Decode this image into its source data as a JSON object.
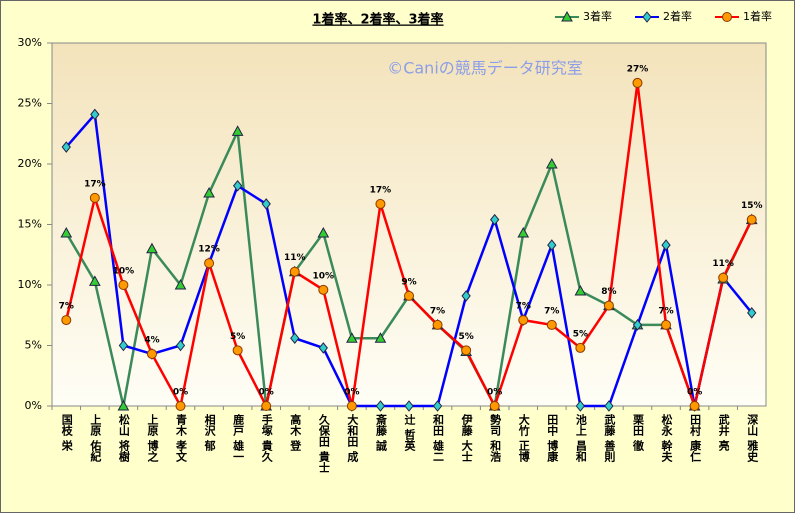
{
  "chart_data": {
    "type": "line",
    "title": "1着率、2着率、3着率",
    "watermark": "©Caniの競馬データ研究室",
    "categories": [
      "国枝 栄",
      "上原 佑紀",
      "松山 将樹",
      "上原 博之",
      "青木 孝文",
      "相沢 郁",
      "鹿戸 雄一",
      "手塚 貴久",
      "高木 登",
      "久保田 貴士",
      "大和田 成",
      "斎藤 誠",
      "辻 哲英",
      "和田 雄二",
      "伊藤 大士",
      "勢司 和浩",
      "大竹 正博",
      "田中 博康",
      "池上 昌和",
      "武藤 善則",
      "栗田 徹",
      "松永 幹夫",
      "田村 康仁",
      "武井 亮",
      "深山 雅史"
    ],
    "series": [
      {
        "name": "3着率",
        "color": "#3a8a5a",
        "marker": "triangle",
        "marker_color": "#33cc33",
        "values": [
          14.3,
          10.3,
          0,
          13.0,
          10.0,
          17.6,
          22.7,
          0,
          11.1,
          14.3,
          5.6,
          5.6,
          9.1,
          6.7,
          4.5,
          0,
          14.3,
          20.0,
          9.5,
          8.3,
          6.7,
          6.7,
          0,
          10.5,
          15.4
        ]
      },
      {
        "name": "2着率",
        "color": "#0000ff",
        "marker": "diamond",
        "marker_color": "#33cccc",
        "values": [
          21.4,
          24.1,
          5.0,
          4.3,
          5.0,
          11.8,
          18.2,
          16.7,
          5.6,
          4.8,
          0,
          0,
          0,
          0,
          9.1,
          15.4,
          7.1,
          13.3,
          0,
          0,
          6.7,
          13.3,
          0,
          10.6,
          7.7
        ]
      },
      {
        "name": "1着率",
        "color": "#ff0000",
        "marker": "circle",
        "marker_color": "#ff9900",
        "values": [
          7.1,
          17.2,
          10.0,
          4.3,
          0,
          11.8,
          4.6,
          0,
          11.1,
          9.6,
          0,
          16.7,
          9.1,
          6.7,
          4.6,
          0,
          7.1,
          6.7,
          4.8,
          8.3,
          26.7,
          6.7,
          0,
          10.6,
          15.4
        ],
        "value_labels": [
          "7%",
          "17%",
          "10%",
          "4%",
          "0%",
          "12%",
          "5%",
          "0%",
          "11%",
          "10%",
          "0%",
          "17%",
          "9%",
          "7%",
          "5%",
          "0%",
          "7%",
          "7%",
          "5%",
          "8%",
          "27%",
          "7%",
          "0%",
          "11%",
          "15%"
        ]
      }
    ],
    "ylim": [
      0,
      30
    ],
    "yticks": [
      {
        "value": 0,
        "label": "0%"
      },
      {
        "value": 5,
        "label": "5%"
      },
      {
        "value": 10,
        "label": "10%"
      },
      {
        "value": 15,
        "label": "15%"
      },
      {
        "value": 20,
        "label": "20%"
      },
      {
        "value": 25,
        "label": "25%"
      },
      {
        "value": 30,
        "label": "30%"
      }
    ],
    "grid": false,
    "legend": "top-right"
  }
}
